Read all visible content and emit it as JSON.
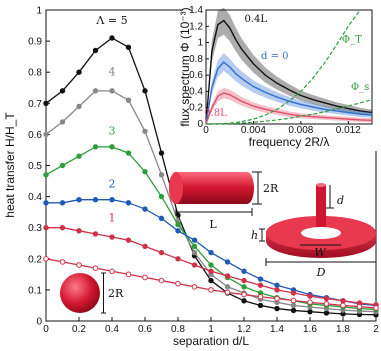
{
  "chart_data": [
    {
      "type": "line",
      "xlabel": "separation d/L",
      "ylabel": "heat transfer H/H_T",
      "xlim": [
        0,
        2
      ],
      "ylim": [
        0,
        1
      ],
      "xticks": [
        "0",
        "0.2",
        "0.4",
        "0.6",
        "0.8",
        "1",
        "1.2",
        "1.4",
        "1.6",
        "1.8",
        "2"
      ],
      "yticks": [
        "0",
        "0.1",
        "0.2",
        "0.3",
        "0.4",
        "0.5",
        "0.6",
        "0.7",
        "0.8",
        "0.9",
        "1"
      ],
      "x": [
        0,
        0.1,
        0.2,
        0.3,
        0.4,
        0.5,
        0.6,
        0.7,
        0.8,
        0.9,
        1.0,
        1.1,
        1.2,
        1.3,
        1.4,
        1.5,
        1.6,
        1.7,
        1.8,
        1.9,
        2.0
      ],
      "series": [
        {
          "name": "Λ = 5",
          "color": "#111111",
          "values": [
            0.7,
            0.74,
            0.8,
            0.87,
            0.91,
            0.88,
            0.74,
            0.54,
            0.34,
            0.21,
            0.13,
            0.09,
            0.065,
            0.05,
            0.04,
            0.034,
            0.03,
            0.026,
            0.023,
            0.021,
            0.02
          ]
        },
        {
          "name": "4",
          "color": "#888888",
          "values": [
            0.6,
            0.64,
            0.69,
            0.74,
            0.74,
            0.71,
            0.61,
            0.47,
            0.32,
            0.22,
            0.15,
            0.11,
            0.09,
            0.07,
            0.06,
            0.05,
            0.045,
            0.04,
            0.035,
            0.032,
            0.03
          ]
        },
        {
          "name": "3",
          "color": "#2e9e3a",
          "values": [
            0.47,
            0.5,
            0.53,
            0.56,
            0.56,
            0.54,
            0.48,
            0.4,
            0.31,
            0.24,
            0.18,
            0.14,
            0.11,
            0.09,
            0.075,
            0.065,
            0.055,
            0.05,
            0.045,
            0.04,
            0.037
          ]
        },
        {
          "name": "2",
          "color": "#1e5bb5",
          "values": [
            0.38,
            0.38,
            0.39,
            0.39,
            0.39,
            0.38,
            0.36,
            0.33,
            0.29,
            0.26,
            0.22,
            0.19,
            0.16,
            0.135,
            0.115,
            0.1,
            0.085,
            0.075,
            0.065,
            0.055,
            0.05
          ]
        },
        {
          "name": "1",
          "color": "#d0314a",
          "values": [
            0.3,
            0.3,
            0.29,
            0.28,
            0.27,
            0.26,
            0.24,
            0.22,
            0.2,
            0.18,
            0.16,
            0.145,
            0.13,
            0.115,
            0.1,
            0.09,
            0.08,
            0.072,
            0.065,
            0.058,
            0.052
          ]
        },
        {
          "name": "",
          "color": "#d0314a",
          "open": true,
          "values": [
            0.2,
            0.19,
            0.18,
            0.17,
            0.16,
            0.15,
            0.14,
            0.13,
            0.12,
            0.11,
            0.1,
            0.092,
            0.085,
            0.078,
            0.072,
            0.066,
            0.06,
            0.055,
            0.05,
            0.046,
            0.042
          ]
        }
      ],
      "annotations": {
        "cylinder_R": "2R",
        "cylinder_L": "L",
        "ring_d": "d",
        "ring_h": "h",
        "ring_W": "W",
        "ring_D": "D",
        "sphere_R": "2R"
      }
    },
    {
      "type": "line",
      "xlabel": "frequency 2R/λ",
      "ylabel": "flux spectrum Φ (10⁻³)",
      "xlim": [
        0,
        0.014
      ],
      "ylim": [
        0,
        1.4
      ],
      "xticks": [
        "0",
        "0.004",
        "0.008",
        "0.012"
      ],
      "yticks": [
        "0",
        "0.2",
        "0.4",
        "0.6",
        "0.8",
        "1",
        "1.2",
        "1.4"
      ],
      "x": [
        0,
        0.0005,
        0.001,
        0.0015,
        0.002,
        0.0025,
        0.003,
        0.004,
        0.005,
        0.006,
        0.007,
        0.008,
        0.009,
        0.01,
        0.011,
        0.012,
        0.013,
        0.014
      ],
      "series": [
        {
          "name": "0.4L",
          "color": "#111111",
          "values": [
            0,
            0.9,
            1.22,
            1.27,
            1.18,
            1.04,
            0.92,
            0.74,
            0.6,
            0.5,
            0.42,
            0.35,
            0.3,
            0.26,
            0.22,
            0.19,
            0.16,
            0.14
          ]
        },
        {
          "name": "d = 0",
          "color": "#2f6fd0",
          "values": [
            0,
            0.45,
            0.68,
            0.76,
            0.7,
            0.62,
            0.56,
            0.46,
            0.39,
            0.33,
            0.28,
            0.24,
            0.21,
            0.18,
            0.16,
            0.14,
            0.12,
            0.11
          ]
        },
        {
          "name": "0.8L",
          "color": "#e0506a",
          "values": [
            0,
            0.2,
            0.34,
            0.38,
            0.36,
            0.32,
            0.28,
            0.22,
            0.18,
            0.15,
            0.12,
            0.1,
            0.09,
            0.08,
            0.07,
            0.06,
            0.05,
            0.045
          ]
        },
        {
          "name": "Φ_T",
          "color": "#2e9e3a",
          "dashed": true,
          "values": [
            0,
            0.0005,
            0.002,
            0.005,
            0.01,
            0.018,
            0.03,
            0.06,
            0.11,
            0.18,
            0.28,
            0.4,
            0.56,
            0.75,
            0.97,
            1.2,
            1.4,
            1.55
          ]
        },
        {
          "name": "Φ_s",
          "color": "#2e9e3a",
          "dashed": true,
          "values": [
            0,
            0.0002,
            0.0008,
            0.002,
            0.004,
            0.007,
            0.011,
            0.02,
            0.035,
            0.05,
            0.07,
            0.095,
            0.12,
            0.15,
            0.185,
            0.22,
            0.26,
            0.3
          ]
        }
      ]
    }
  ]
}
